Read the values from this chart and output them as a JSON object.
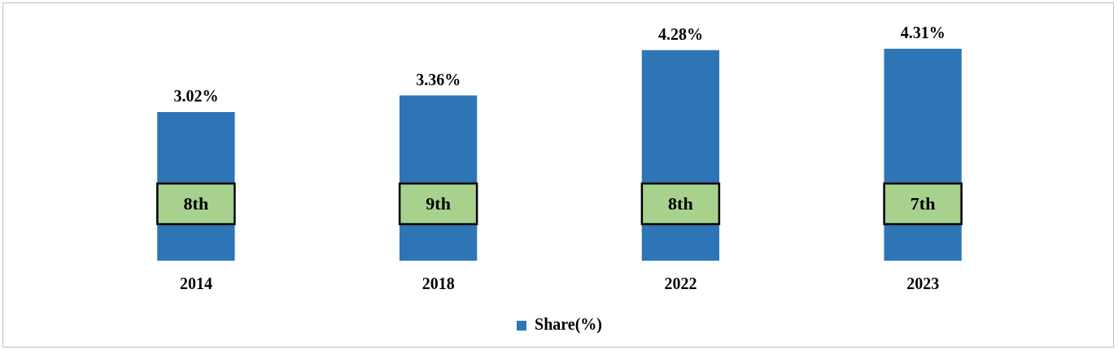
{
  "chart_data": {
    "type": "bar",
    "categories": [
      "2014",
      "2018",
      "2022",
      "2023"
    ],
    "series": [
      {
        "name": "Share(%)",
        "color": "#2e75b6",
        "values": [
          3.02,
          3.36,
          4.28,
          4.31
        ],
        "value_labels": [
          "3.02%",
          "3.36%",
          "4.28%",
          "4.31%"
        ]
      }
    ],
    "tick_labels": "x",
    "grid": false,
    "legend": "bottom",
    "annotations": [
      "8th",
      "9th",
      "8th",
      "7th"
    ]
  }
}
